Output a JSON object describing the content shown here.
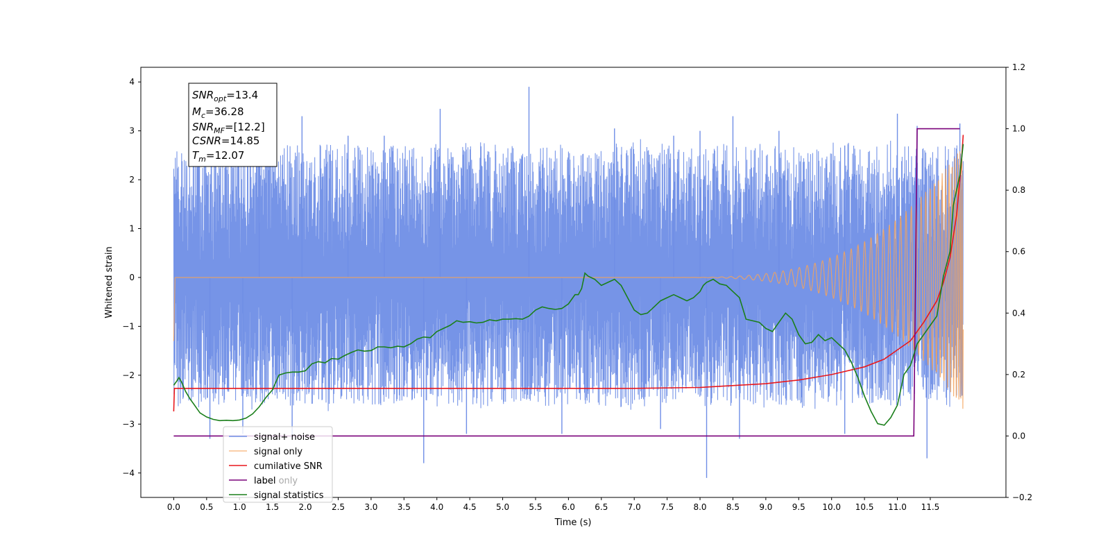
{
  "chart_data": {
    "type": "line",
    "xlabel": "Time (s)",
    "ylabel_left": "Whitened strain",
    "ylabel_right": "",
    "xlim": [
      -0.5,
      12.65
    ],
    "ylim_left": [
      -4.5,
      4.3
    ],
    "ylim_right": [
      -0.2,
      1.2
    ],
    "x_ticks": [
      "0.0",
      "0.5",
      "1.0",
      "1.5",
      "2.0",
      "2.5",
      "3.0",
      "3.5",
      "4.0",
      "4.5",
      "5.0",
      "5.5",
      "6.0",
      "6.5",
      "7.0",
      "7.5",
      "8.0",
      "8.5",
      "9.0",
      "9.5",
      "10.0",
      "10.5",
      "11.0",
      "11.5"
    ],
    "y_ticks_left": [
      "4",
      "3",
      "2",
      "1",
      "0",
      "−1",
      "−2",
      "−3",
      "−4"
    ],
    "y_ticks_right": [
      "1.2",
      "1.0",
      "0.8",
      "0.6",
      "0.4",
      "0.2",
      "0.0",
      "−0.2"
    ],
    "grid": false,
    "legend_position": "lower-left",
    "info_box": {
      "snr_opt": {
        "main": "SNR",
        "sub": "opt",
        "value": "=13.4"
      },
      "mc": {
        "main": "M",
        "sub": "c",
        "value": "=36.28"
      },
      "snr_mf": {
        "main": "SNR",
        "sub": "MF",
        "value": "=[12.2]"
      },
      "csnr": {
        "main": "CSNR",
        "sub": "",
        "value": "=14.85"
      },
      "tm": {
        "main": "T",
        "sub": "m",
        "value": "=12.07"
      }
    },
    "series": [
      {
        "name": "signal+ noise",
        "color": "#6f8ee6",
        "axis": "left",
        "x_range": [
          0.0,
          12.0
        ],
        "band": [
          -2.6,
          2.7
        ],
        "spikes_up": [
          [
            1.3,
            2.9
          ],
          [
            1.95,
            3.3
          ],
          [
            2.65,
            2.9
          ],
          [
            3.2,
            2.9
          ],
          [
            4.05,
            3.45
          ],
          [
            5.4,
            3.9
          ],
          [
            6.7,
            3.05
          ],
          [
            7.6,
            2.9
          ],
          [
            8.0,
            3.0
          ],
          [
            8.5,
            3.3
          ],
          [
            9.2,
            3.0
          ],
          [
            10.2,
            2.7
          ],
          [
            11.0,
            3.35
          ],
          [
            11.3,
            3.1
          ],
          [
            11.95,
            3.15
          ]
        ],
        "spikes_down": [
          [
            0.55,
            -3.3
          ],
          [
            1.05,
            -3.2
          ],
          [
            1.8,
            -3.3
          ],
          [
            3.8,
            -3.8
          ],
          [
            4.45,
            -3.2
          ],
          [
            5.9,
            -3.2
          ],
          [
            7.4,
            -3.1
          ],
          [
            8.1,
            -4.1
          ],
          [
            8.6,
            -3.3
          ],
          [
            10.2,
            -3.2
          ],
          [
            11.45,
            -3.7
          ]
        ]
      },
      {
        "name": "signal only",
        "color": "#f5a35a",
        "axis": "left",
        "chirp_start": 7.5,
        "chirp_end": 12.0,
        "amp_end": 2.7
      },
      {
        "name": "cumilative SNR",
        "color": "#e8171c",
        "axis": "right",
        "points": [
          [
            0.0,
            0.08
          ],
          [
            0.01,
            0.155
          ],
          [
            1.0,
            0.155
          ],
          [
            7.0,
            0.155
          ],
          [
            8.0,
            0.158
          ],
          [
            9.0,
            0.17
          ],
          [
            9.5,
            0.182
          ],
          [
            10.0,
            0.2
          ],
          [
            10.5,
            0.225
          ],
          [
            10.8,
            0.25
          ],
          [
            11.0,
            0.28
          ],
          [
            11.2,
            0.31
          ],
          [
            11.4,
            0.37
          ],
          [
            11.6,
            0.44
          ],
          [
            11.7,
            0.5
          ],
          [
            11.8,
            0.58
          ],
          [
            11.9,
            0.72
          ],
          [
            11.97,
            0.88
          ],
          [
            12.0,
            0.98
          ]
        ]
      },
      {
        "name": "label",
        "color": "#7a007a",
        "axis": "right",
        "points": [
          [
            0.0,
            0.0
          ],
          [
            11.25,
            0.0
          ],
          [
            11.3,
            1.0
          ],
          [
            11.95,
            1.0
          ]
        ]
      },
      {
        "name": "label only",
        "color": "#7a007a",
        "axis": "right",
        "legend_only": true
      },
      {
        "name": "signal statistics",
        "color": "#1a7f1a",
        "axis": "right",
        "points": [
          [
            0.0,
            0.165
          ],
          [
            0.05,
            0.18
          ],
          [
            0.08,
            0.19
          ],
          [
            0.12,
            0.175
          ],
          [
            0.18,
            0.145
          ],
          [
            0.25,
            0.12
          ],
          [
            0.3,
            0.105
          ],
          [
            0.35,
            0.09
          ],
          [
            0.4,
            0.075
          ],
          [
            0.5,
            0.062
          ],
          [
            0.6,
            0.054
          ],
          [
            0.7,
            0.05
          ],
          [
            0.8,
            0.051
          ],
          [
            0.9,
            0.05
          ],
          [
            1.0,
            0.052
          ],
          [
            1.1,
            0.058
          ],
          [
            1.2,
            0.072
          ],
          [
            1.3,
            0.095
          ],
          [
            1.4,
            0.125
          ],
          [
            1.5,
            0.15
          ],
          [
            1.6,
            0.198
          ],
          [
            1.7,
            0.205
          ],
          [
            1.8,
            0.208
          ],
          [
            1.9,
            0.208
          ],
          [
            2.0,
            0.212
          ],
          [
            2.1,
            0.235
          ],
          [
            2.2,
            0.242
          ],
          [
            2.3,
            0.238
          ],
          [
            2.4,
            0.252
          ],
          [
            2.5,
            0.25
          ],
          [
            2.6,
            0.262
          ],
          [
            2.7,
            0.272
          ],
          [
            2.8,
            0.28
          ],
          [
            2.9,
            0.276
          ],
          [
            3.0,
            0.278
          ],
          [
            3.1,
            0.29
          ],
          [
            3.2,
            0.29
          ],
          [
            3.3,
            0.287
          ],
          [
            3.4,
            0.292
          ],
          [
            3.5,
            0.29
          ],
          [
            3.6,
            0.3
          ],
          [
            3.7,
            0.315
          ],
          [
            3.8,
            0.322
          ],
          [
            3.9,
            0.32
          ],
          [
            4.0,
            0.34
          ],
          [
            4.1,
            0.35
          ],
          [
            4.2,
            0.36
          ],
          [
            4.3,
            0.375
          ],
          [
            4.4,
            0.37
          ],
          [
            4.5,
            0.372
          ],
          [
            4.6,
            0.368
          ],
          [
            4.7,
            0.37
          ],
          [
            4.8,
            0.378
          ],
          [
            4.9,
            0.375
          ],
          [
            5.0,
            0.38
          ],
          [
            5.1,
            0.38
          ],
          [
            5.2,
            0.382
          ],
          [
            5.3,
            0.38
          ],
          [
            5.4,
            0.39
          ],
          [
            5.5,
            0.41
          ],
          [
            5.6,
            0.42
          ],
          [
            5.7,
            0.415
          ],
          [
            5.8,
            0.412
          ],
          [
            5.9,
            0.415
          ],
          [
            6.0,
            0.43
          ],
          [
            6.1,
            0.46
          ],
          [
            6.15,
            0.46
          ],
          [
            6.2,
            0.48
          ],
          [
            6.25,
            0.53
          ],
          [
            6.3,
            0.52
          ],
          [
            6.4,
            0.51
          ],
          [
            6.5,
            0.49
          ],
          [
            6.6,
            0.5
          ],
          [
            6.7,
            0.51
          ],
          [
            6.8,
            0.49
          ],
          [
            6.9,
            0.45
          ],
          [
            7.0,
            0.41
          ],
          [
            7.1,
            0.395
          ],
          [
            7.2,
            0.4
          ],
          [
            7.3,
            0.42
          ],
          [
            7.4,
            0.44
          ],
          [
            7.5,
            0.45
          ],
          [
            7.6,
            0.46
          ],
          [
            7.7,
            0.45
          ],
          [
            7.8,
            0.44
          ],
          [
            7.9,
            0.45
          ],
          [
            8.0,
            0.47
          ],
          [
            8.05,
            0.49
          ],
          [
            8.1,
            0.5
          ],
          [
            8.2,
            0.51
          ],
          [
            8.3,
            0.495
          ],
          [
            8.4,
            0.49
          ],
          [
            8.5,
            0.47
          ],
          [
            8.6,
            0.45
          ],
          [
            8.7,
            0.38
          ],
          [
            8.8,
            0.375
          ],
          [
            8.9,
            0.37
          ],
          [
            9.0,
            0.35
          ],
          [
            9.1,
            0.34
          ],
          [
            9.2,
            0.37
          ],
          [
            9.3,
            0.4
          ],
          [
            9.4,
            0.38
          ],
          [
            9.5,
            0.33
          ],
          [
            9.6,
            0.3
          ],
          [
            9.7,
            0.305
          ],
          [
            9.8,
            0.33
          ],
          [
            9.9,
            0.31
          ],
          [
            10.0,
            0.32
          ],
          [
            10.1,
            0.3
          ],
          [
            10.2,
            0.28
          ],
          [
            10.3,
            0.24
          ],
          [
            10.4,
            0.19
          ],
          [
            10.5,
            0.13
          ],
          [
            10.6,
            0.08
          ],
          [
            10.7,
            0.04
          ],
          [
            10.8,
            0.035
          ],
          [
            10.9,
            0.06
          ],
          [
            11.0,
            0.1
          ],
          [
            11.05,
            0.15
          ],
          [
            11.1,
            0.2
          ],
          [
            11.2,
            0.23
          ],
          [
            11.3,
            0.3
          ],
          [
            11.4,
            0.33
          ],
          [
            11.5,
            0.36
          ],
          [
            11.6,
            0.39
          ],
          [
            11.7,
            0.52
          ],
          [
            11.8,
            0.6
          ],
          [
            11.85,
            0.75
          ],
          [
            11.9,
            0.8
          ],
          [
            11.95,
            0.85
          ],
          [
            12.0,
            0.95
          ]
        ]
      }
    ]
  }
}
